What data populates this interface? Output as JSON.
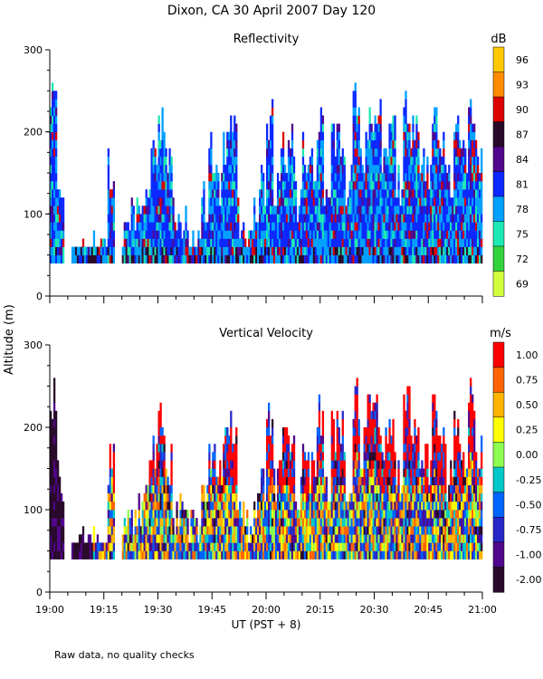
{
  "page_title": "Dixon, CA 30 April 2007  Day 120",
  "shared_ylabel": "Altitude (m)",
  "shared_xlabel": "UT  (PST + 8)",
  "footnote": "Raw data, no quality checks",
  "chart_data": [
    {
      "type": "heatmap",
      "title": "Reflectivity",
      "xlabel": "UT  (PST + 8)",
      "ylabel": "Altitude (m)",
      "x_range_ut": [
        "19:00",
        "21:00"
      ],
      "xlim_minutes": [
        0,
        120
      ],
      "ylim": [
        0,
        300
      ],
      "y_ticks": [
        "0",
        "100",
        "200",
        "300"
      ],
      "x_ticks": [],
      "colorbar": {
        "units": "dB",
        "labels": [
          "96",
          "93",
          "90",
          "87",
          "84",
          "81",
          "78",
          "75",
          "72",
          "69"
        ],
        "colors": [
          "#ffc800",
          "#ff8c00",
          "#dc0000",
          "#2a0a2a",
          "#50078c",
          "#0a28ff",
          "#00a0ff",
          "#1ee8b4",
          "#32d23c",
          "#d2ff3c"
        ]
      },
      "data_description": "Echo from ~40 m up to ~260 m, mostly 78-84 dB with cells of 87-90 dB",
      "column_tops_sample": [
        260,
        160,
        0,
        80,
        80,
        80,
        80,
        80,
        180,
        0,
        100,
        120,
        120,
        160,
        200,
        240,
        180,
        120,
        120,
        100,
        100,
        140,
        200,
        160,
        200,
        220,
        120,
        100,
        120,
        160,
        240,
        160,
        200,
        220,
        140,
        200,
        180,
        240,
        160,
        220,
        220,
        160,
        260,
        200,
        240,
        240,
        200,
        220,
        160,
        260,
        220,
        200,
        180,
        240,
        200,
        160,
        220,
        200,
        260,
        200
      ]
    },
    {
      "type": "heatmap",
      "title": "Vertical Velocity",
      "xlabel": "UT  (PST + 8)",
      "ylabel": "Altitude (m)",
      "x_range_ut": [
        "19:00",
        "21:00"
      ],
      "xlim_minutes": [
        0,
        120
      ],
      "ylim": [
        0,
        300
      ],
      "y_ticks": [
        "0",
        "100",
        "200",
        "300"
      ],
      "x_ticks": [
        "19:00",
        "19:15",
        "19:30",
        "19:45",
        "20:00",
        "20:15",
        "20:30",
        "20:45",
        "21:00"
      ],
      "colorbar": {
        "units": "m/s",
        "labels": [
          "1.00",
          "0.75",
          "0.50",
          "0.25",
          "0.00",
          "-0.25",
          "-0.50",
          "-0.75",
          "-1.00",
          "-2.00"
        ],
        "colors": [
          "#ff0000",
          "#ff6400",
          "#ffb400",
          "#ffff00",
          "#8cff50",
          "#00c8c8",
          "#0064ff",
          "#2828c8",
          "#50078c",
          "#2a0a2a"
        ]
      },
      "data_description": "Velocities from about -2 to +1 m/s between ~40 m and ~260 m, strong updraft (red) tops around 20:00-20:30",
      "column_tops_sample": [
        260,
        160,
        0,
        80,
        80,
        80,
        80,
        80,
        180,
        0,
        100,
        120,
        120,
        160,
        200,
        240,
        180,
        120,
        120,
        100,
        100,
        140,
        200,
        160,
        200,
        220,
        120,
        100,
        120,
        160,
        240,
        160,
        200,
        220,
        140,
        200,
        180,
        240,
        160,
        220,
        220,
        160,
        260,
        200,
        240,
        240,
        200,
        220,
        160,
        260,
        220,
        200,
        180,
        240,
        200,
        160,
        220,
        200,
        260,
        200
      ]
    }
  ]
}
